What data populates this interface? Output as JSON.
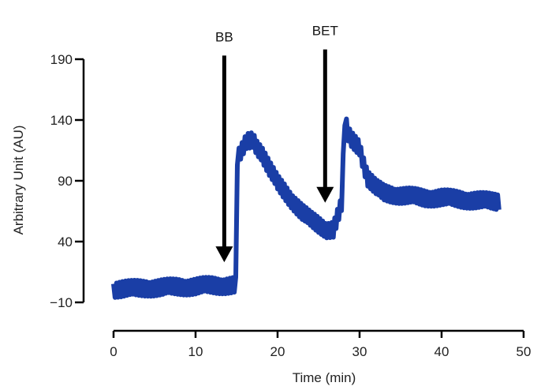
{
  "chart_data": {
    "type": "line",
    "title": "",
    "xlabel": "Time (min)",
    "ylabel": "Arbitrary Unit (AU)",
    "xlim": [
      0,
      50
    ],
    "ylim": [
      -10,
      190
    ],
    "x_ticks": [
      "0",
      "10",
      "20",
      "30",
      "40",
      "50"
    ],
    "y_ticks": [
      "−10",
      "40",
      "90",
      "140",
      "190"
    ],
    "grid": false,
    "legend": "none",
    "series": [
      {
        "color": "#1a3ea6",
        "x": [
          0,
          2,
          4,
          6,
          8,
          10,
          12,
          14,
          14.9,
          15.1,
          15.5,
          16.2,
          17,
          17.5,
          18,
          19,
          20,
          21,
          22,
          23,
          24,
          25,
          26,
          26.8,
          27.3,
          27.8,
          28.2,
          28.6,
          29,
          30,
          30.5,
          31,
          32,
          33,
          35,
          38,
          40,
          42,
          44,
          46,
          47
        ],
        "y": [
          1,
          1,
          2,
          2,
          3,
          3,
          4,
          4,
          4,
          108,
          112,
          122,
          124,
          118,
          114,
          100,
          88,
          80,
          72,
          64,
          58,
          54,
          50,
          50,
          60,
          70,
          140,
          128,
          124,
          118,
          104,
          92,
          84,
          80,
          78,
          76,
          76,
          75,
          74,
          73,
          73
        ],
        "noise_amplitude": 7
      }
    ],
    "annotations": [
      {
        "label": "BB",
        "x": 13.5,
        "y_tip": 23,
        "y_top": 193
      },
      {
        "label": "BET",
        "x": 25.8,
        "y_tip": 72,
        "y_top": 198
      }
    ]
  }
}
